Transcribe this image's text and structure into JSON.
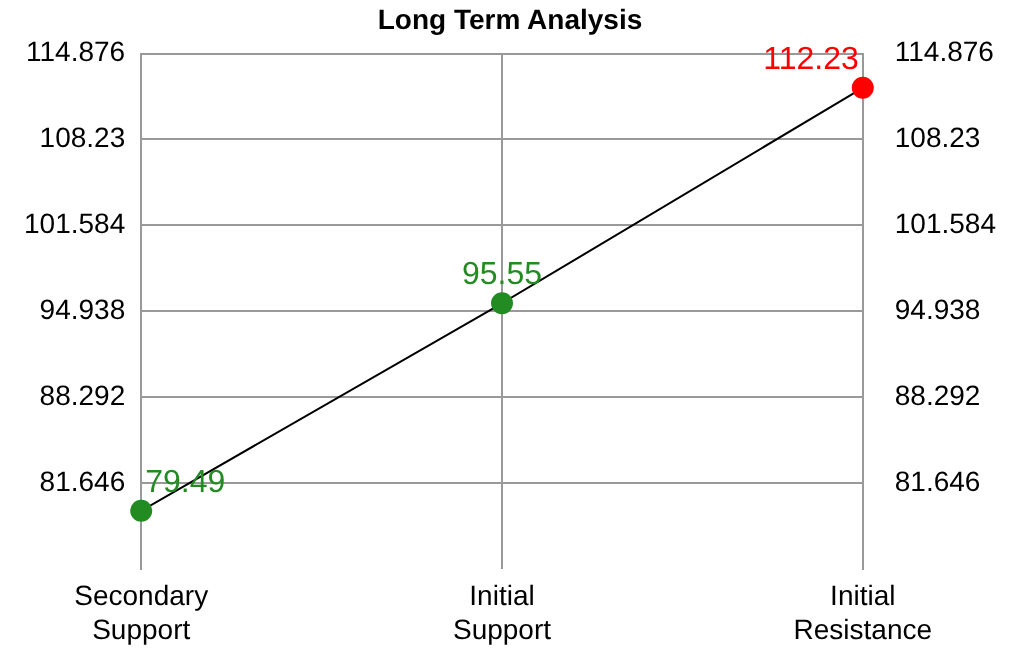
{
  "chart_data": {
    "type": "line",
    "title": "Long Term Analysis",
    "categories": [
      "Secondary Support",
      "Initial Support",
      "Initial Resistance"
    ],
    "series": [
      {
        "color": "#000000",
        "colors": [
          "#228b22",
          "#228b22",
          "#ff0000"
        ],
        "values": [
          79.49,
          95.55,
          112.23
        ]
      }
    ],
    "ylim": [
      75,
      114.876
    ],
    "yticks": [
      81.646,
      88.292,
      94.938,
      101.584,
      108.23,
      114.876
    ],
    "y2lim": [
      75,
      114.876
    ],
    "y2ticks": [
      81.646,
      88.292,
      94.938,
      101.584,
      108.23,
      114.876
    ],
    "grid": true,
    "legend": false,
    "marker": "circle",
    "line_style": "solid",
    "data_labels": true
  }
}
